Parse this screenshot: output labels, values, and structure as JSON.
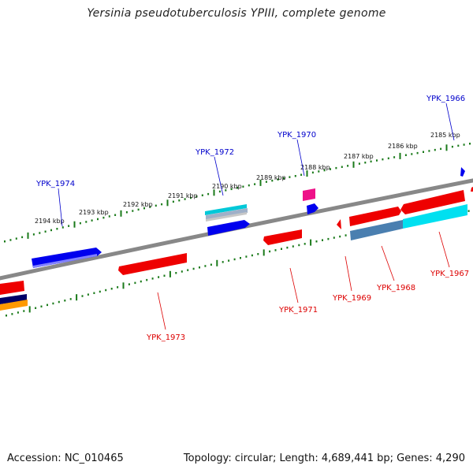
{
  "header": {
    "title": "Yersinia pseudotuberculosis YPIII, complete genome"
  },
  "footer": {
    "accession": "Accession: NC_010465",
    "summary": "Topology: circular; Length: 4,689,441 bp; Genes: 4,290"
  },
  "colors": {
    "backbone": "#808080",
    "tick": "#1a7a1a",
    "forward_label": "#0000cc",
    "reverse_label": "#dd0000",
    "gene_red": "#ee0000",
    "gene_blue": "#0000ee",
    "gene_cyan": "#00d8e8",
    "gene_pink": "#ee1188",
    "gene_steel": "#4a7fb0",
    "gene_orange": "#ff9900",
    "gene_navy": "#000066"
  },
  "scale_labels": [
    "2194 kbp",
    "2193 kbp",
    "2192 kbp",
    "2191 kbp",
    "2190 kbp",
    "2189 kbp",
    "2188 kbp",
    "2187 kbp",
    "2186 kbp",
    "2185 kbp"
  ],
  "gene_labels": {
    "forward": [
      "YPK_1974",
      "YPK_1972",
      "YPK_1970",
      "YPK_1966"
    ],
    "reverse": [
      "YPK_1973",
      "YPK_1971",
      "YPK_1969",
      "YPK_1968",
      "YPK_1967"
    ]
  }
}
